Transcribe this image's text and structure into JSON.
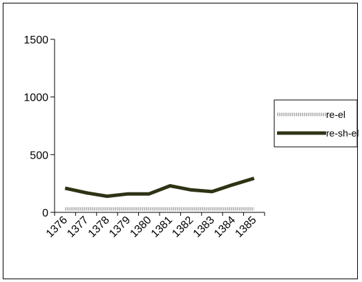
{
  "chart_data": {
    "type": "line",
    "x": [
      "1376",
      "1377",
      "1378",
      "1379",
      "1380",
      "1381",
      "1382",
      "1383",
      "1384",
      "1385"
    ],
    "series": [
      {
        "name": "re-el",
        "values": [
          30,
          30,
          30,
          30,
          30,
          30,
          30,
          30,
          30,
          30
        ],
        "color": "#b8b8b8"
      },
      {
        "name": "re-sh-el",
        "values": [
          210,
          170,
          140,
          160,
          160,
          230,
          195,
          180,
          240,
          295
        ],
        "color": "#2e3314"
      }
    ],
    "ylim": [
      0,
      1500
    ],
    "yticks": [
      0,
      500,
      1000,
      1500
    ],
    "legend_position": "right",
    "grid": false
  }
}
